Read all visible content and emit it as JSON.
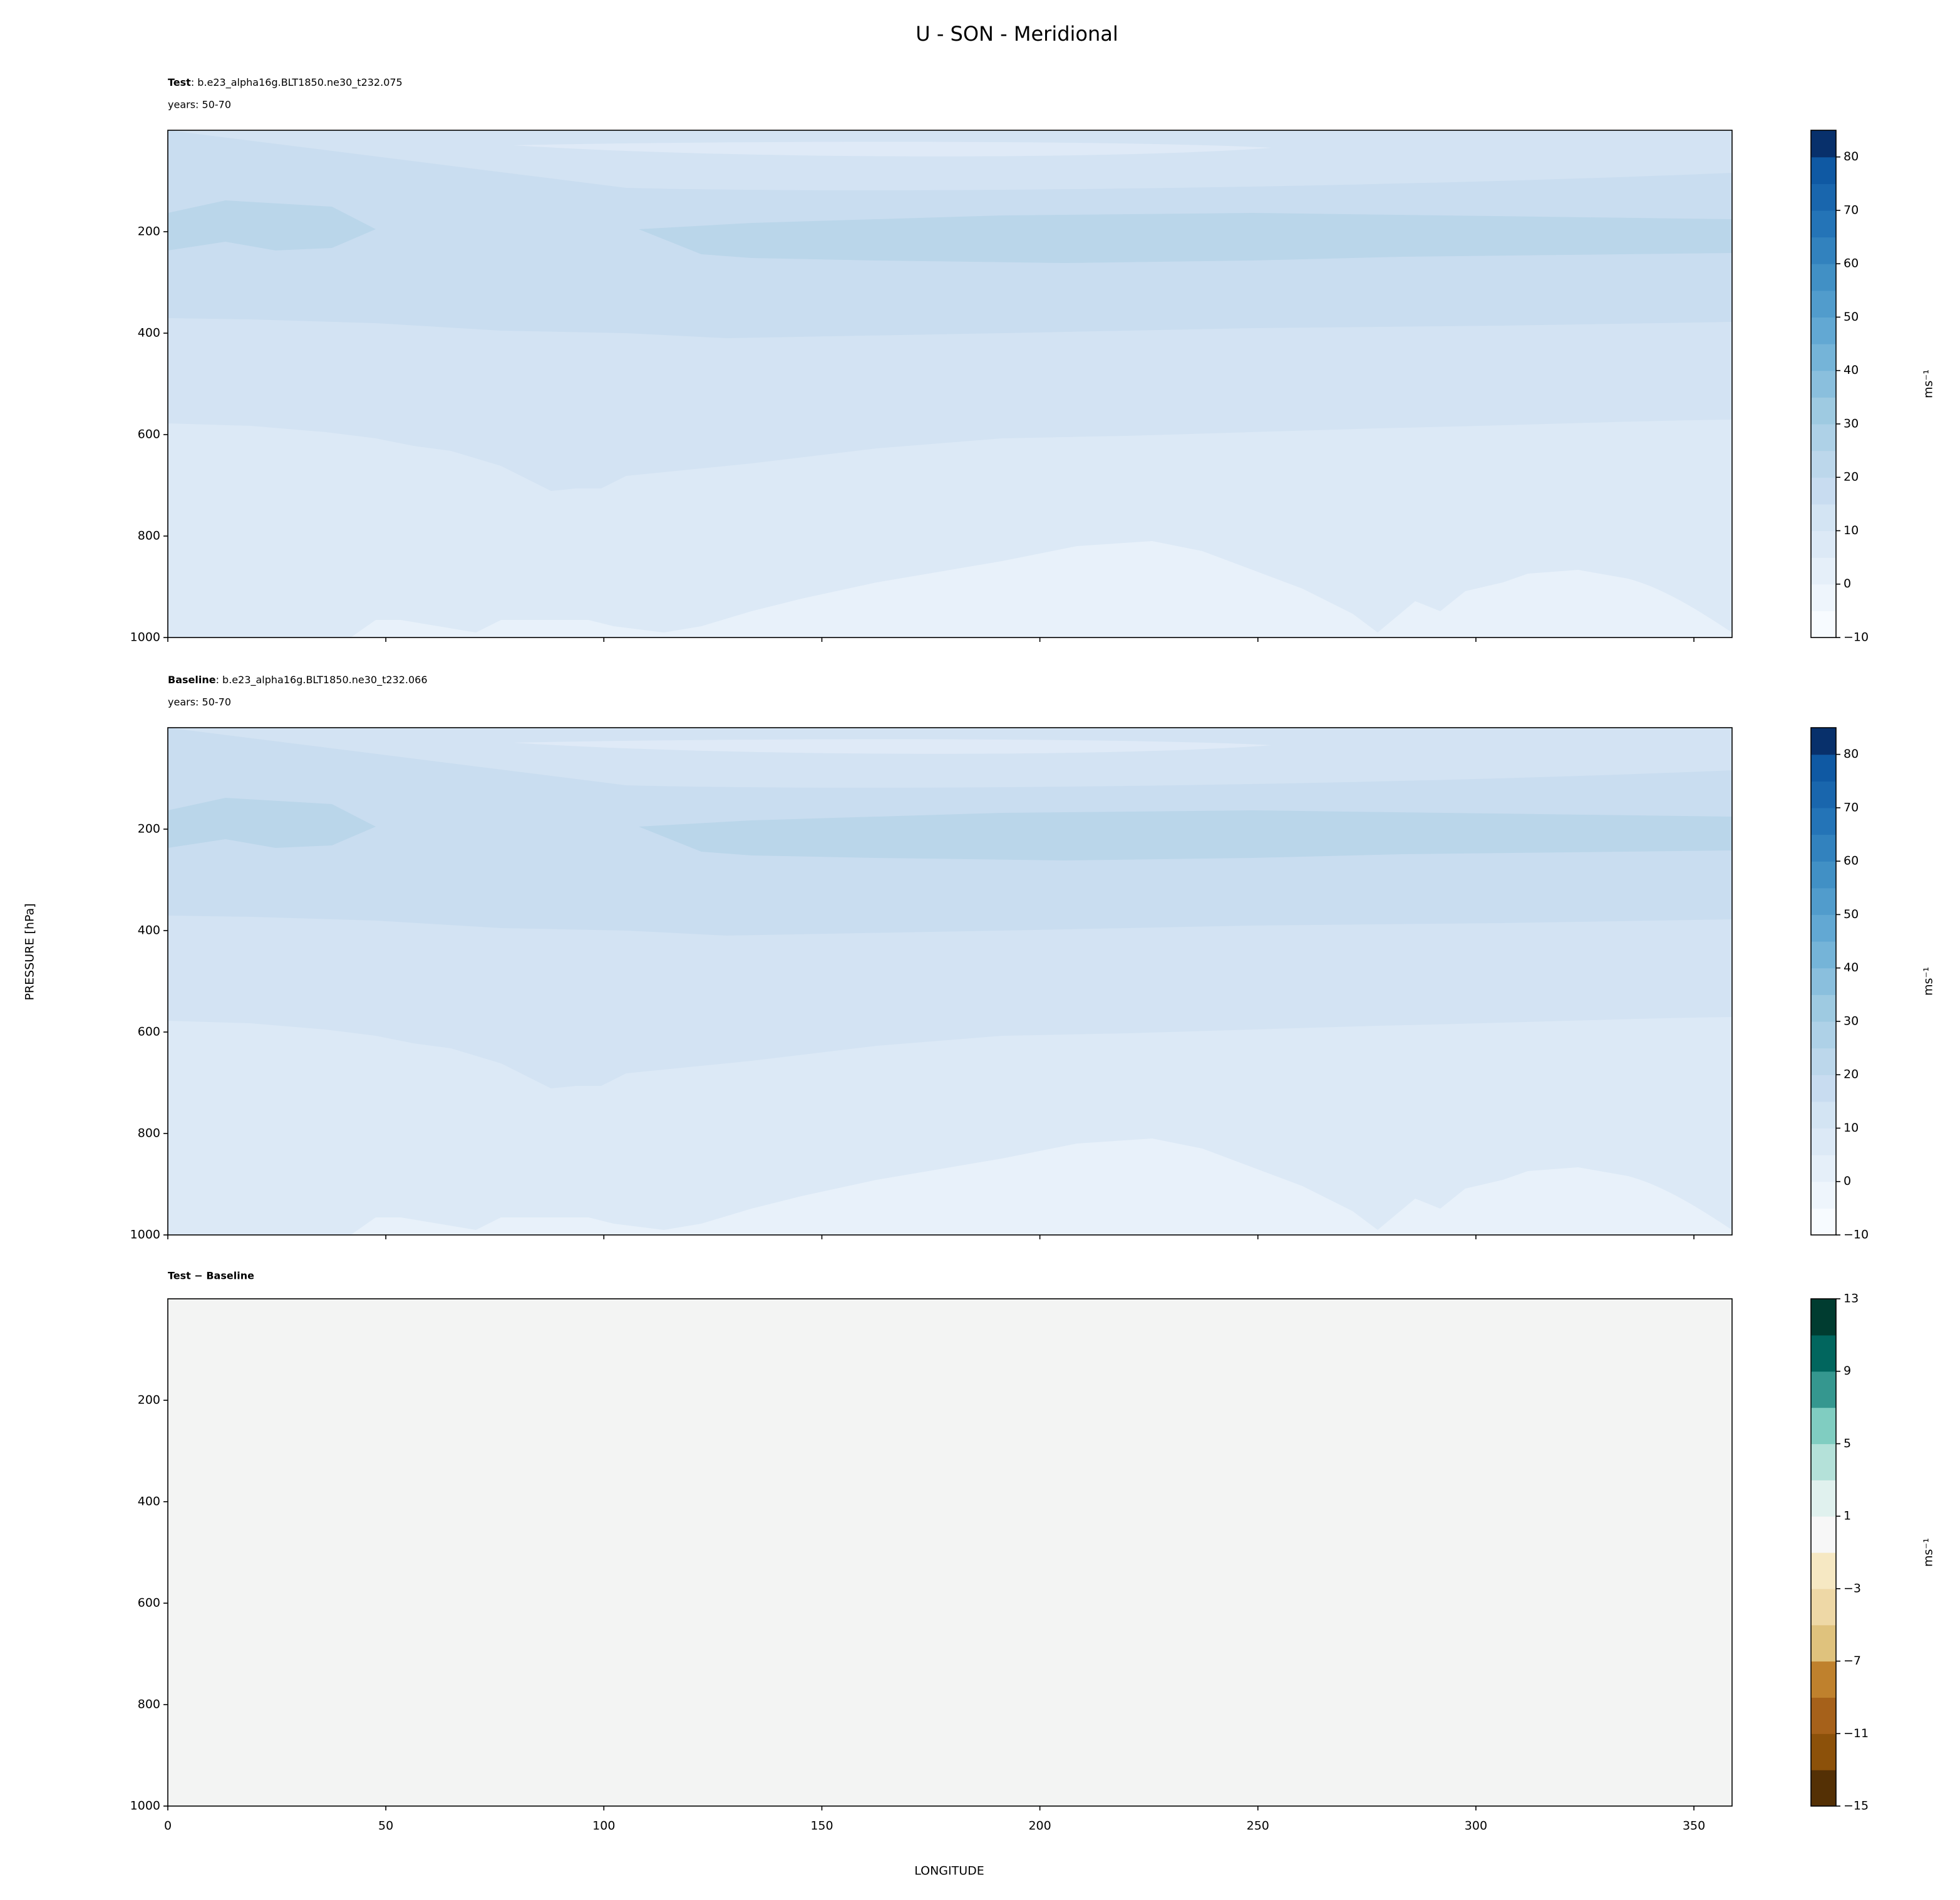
{
  "title": "U - SON - Meridional",
  "ylabel": "PRESSURE [hPa]",
  "xlabel": "LONGITUDE",
  "chart_data": [
    {
      "type": "contour",
      "label": "Test",
      "case": ": b.e23_alpha16g.BLT1850.ne30_t232.075",
      "years": "years: 50-70",
      "xlim": [
        0,
        358.75
      ],
      "xticks": [
        0,
        50,
        100,
        150,
        200,
        250,
        300,
        350
      ],
      "ylim": [
        1000,
        0
      ],
      "yticks": [
        200,
        400,
        600,
        800,
        1000
      ],
      "colorbar": {
        "label": "ms⁻¹",
        "levels": [
          -10,
          -5,
          0,
          5,
          10,
          15,
          20,
          25,
          30,
          35,
          40,
          45,
          50,
          55,
          60,
          65,
          70,
          75,
          80,
          85
        ],
        "colors": [
          "#f7fbff",
          "#eef5fc",
          "#e5eff9",
          "#dce9f6",
          "#d3e4f3",
          "#c8dcf0",
          "#bcd7eb",
          "#aed1e7",
          "#9ecae1",
          "#8abfdd",
          "#75b4d8",
          "#62a8d3",
          "#519ccc",
          "#4190c5",
          "#3282be",
          "#2474b7",
          "#1966ad",
          "#0f59a3",
          "#08306b"
        ],
        "ticks": [
          {
            "value": -10,
            "label": "−10"
          },
          0,
          10,
          20,
          30,
          40,
          50,
          60,
          70,
          80
        ]
      }
    },
    {
      "type": "contour",
      "label": "Baseline",
      "case": ": b.e23_alpha16g.BLT1850.ne30_t232.066",
      "years": "years: 50-70",
      "xlim": [
        0,
        358.75
      ],
      "xticks": [
        0,
        50,
        100,
        150,
        200,
        250,
        300,
        350
      ],
      "ylim": [
        1000,
        0
      ],
      "yticks": [
        200,
        400,
        600,
        800,
        1000
      ],
      "colorbar": {
        "label": "ms⁻¹",
        "levels": [
          -10,
          -5,
          0,
          5,
          10,
          15,
          20,
          25,
          30,
          35,
          40,
          45,
          50,
          55,
          60,
          65,
          70,
          75,
          80,
          85
        ],
        "colors": [
          "#f7fbff",
          "#eef5fc",
          "#e5eff9",
          "#dce9f6",
          "#d3e4f3",
          "#c8dcf0",
          "#bcd7eb",
          "#aed1e7",
          "#9ecae1",
          "#8abfdd",
          "#75b4d8",
          "#62a8d3",
          "#519ccc",
          "#4190c5",
          "#3282be",
          "#2474b7",
          "#1966ad",
          "#0f59a3",
          "#08306b"
        ],
        "ticks": [
          {
            "value": -10,
            "label": "−10"
          },
          0,
          10,
          20,
          30,
          40,
          50,
          60,
          70,
          80
        ]
      }
    },
    {
      "type": "contour",
      "label": "Test − Baseline",
      "xlim": [
        0,
        358.75
      ],
      "xticks": [
        0,
        50,
        100,
        150,
        200,
        250,
        300,
        350
      ],
      "ylim": [
        1000,
        0
      ],
      "yticks": [
        200,
        400,
        600,
        800,
        1000
      ],
      "colorbar": {
        "label": "ms⁻¹",
        "levels": [
          -15,
          -13,
          -11,
          -9,
          -7,
          -5,
          -3,
          -1,
          1,
          3,
          5,
          7,
          9,
          11,
          13
        ],
        "colors": [
          "#543005",
          "#8c510a",
          "#a6611a",
          "#bf812d",
          "#dfc27d",
          "#eed8a6",
          "#f6e8c3",
          "#f7f7f7",
          "#e0f1ee",
          "#b4e1d9",
          "#80cdc1",
          "#35978f",
          "#01665e",
          "#003c30"
        ],
        "ticks": [
          {
            "value": -15,
            "label": "−15"
          },
          {
            "value": -11,
            "label": "−11"
          },
          {
            "value": -7,
            "label": "−7"
          },
          {
            "value": -3,
            "label": "−3"
          },
          1,
          5,
          9,
          13
        ]
      }
    }
  ]
}
